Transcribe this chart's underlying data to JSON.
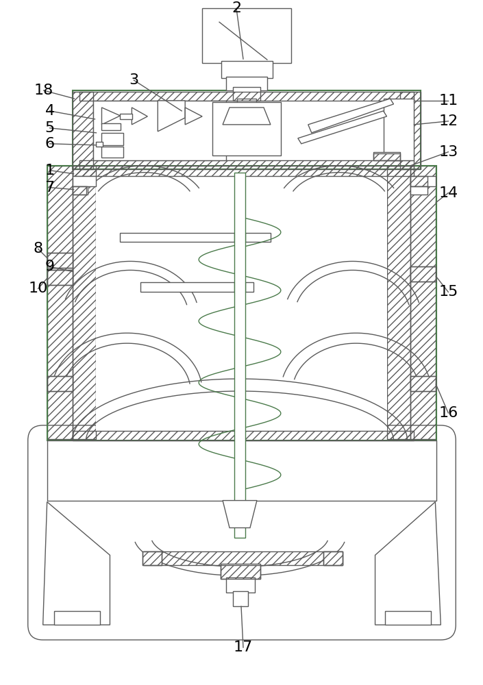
{
  "bg_color": "#ffffff",
  "line_color": "#5a5a5a",
  "label_color": "#000000",
  "lw": 1.0,
  "lw_thick": 1.5,
  "green_color": "#4a7a4a",
  "label_fs": 16
}
